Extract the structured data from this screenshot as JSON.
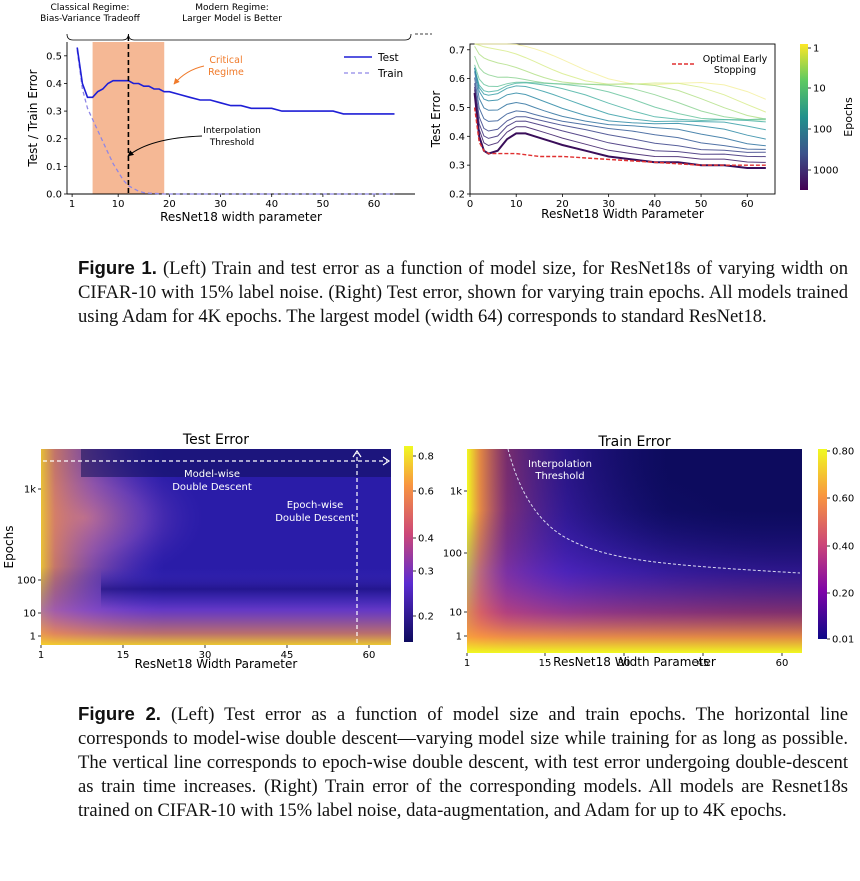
{
  "chart_data": [
    {
      "type": "line",
      "xlabel": "ResNet18 width parameter",
      "ylabel": "Test / Train Error",
      "xlim": [
        0,
        68
      ],
      "ylim": [
        0,
        0.55
      ],
      "xticks": [
        "1",
        "10",
        "20",
        "30",
        "40",
        "50",
        "60"
      ],
      "yticks": [
        "0.0",
        "0.1",
        "0.2",
        "0.3",
        "0.4",
        "0.5"
      ],
      "legend": "top-right",
      "regime_left": "Classical Regime:\nBias-Variance Tradeoff",
      "regime_right": "Modern Regime:\nLarger Model is Better",
      "critical_label": "Critical\nRegime",
      "threshold_label": "Interpolation\nThreshold",
      "critical_range": [
        5,
        19
      ],
      "threshold_x": 12,
      "critical_color": "#f5b895",
      "series": [
        {
          "name": "Test",
          "color": "#1f1fd6",
          "x": [
            2,
            3,
            4,
            5,
            6,
            7,
            8,
            9,
            10,
            11,
            12,
            13,
            14,
            15,
            16,
            17,
            18,
            19,
            20,
            22,
            24,
            26,
            28,
            30,
            32,
            34,
            36,
            38,
            40,
            42,
            44,
            46,
            48,
            50,
            52,
            54,
            56,
            58,
            60,
            62,
            64
          ],
          "y": [
            0.53,
            0.4,
            0.35,
            0.35,
            0.37,
            0.38,
            0.4,
            0.41,
            0.41,
            0.41,
            0.41,
            0.4,
            0.4,
            0.39,
            0.39,
            0.38,
            0.38,
            0.37,
            0.37,
            0.36,
            0.35,
            0.34,
            0.34,
            0.33,
            0.32,
            0.32,
            0.31,
            0.31,
            0.31,
            0.3,
            0.3,
            0.3,
            0.3,
            0.3,
            0.3,
            0.29,
            0.29,
            0.29,
            0.29,
            0.29,
            0.29
          ]
        },
        {
          "name": "Train",
          "color": "#8f86e6",
          "x": [
            2,
            3,
            4,
            5,
            6,
            7,
            8,
            9,
            10,
            11,
            12,
            13,
            14,
            15,
            16,
            17,
            18,
            19,
            20,
            25,
            30,
            40,
            50,
            60,
            64
          ],
          "y": [
            0.52,
            0.38,
            0.31,
            0.27,
            0.23,
            0.19,
            0.15,
            0.11,
            0.08,
            0.05,
            0.03,
            0.02,
            0.01,
            0.005,
            0.003,
            0.002,
            0.001,
            0.0,
            0.0,
            0.0,
            0.0,
            0.0,
            0.0,
            0.0,
            0.0
          ]
        }
      ]
    },
    {
      "type": "line",
      "xlabel": "ResNet18 Width Parameter",
      "ylabel": "Test Error",
      "xlim": [
        0,
        66
      ],
      "ylim": [
        0.2,
        0.72
      ],
      "xticks": [
        "0",
        "10",
        "20",
        "30",
        "40",
        "50",
        "60"
      ],
      "yticks": [
        "0.2",
        "0.3",
        "0.4",
        "0.5",
        "0.6",
        "0.7"
      ],
      "legend": "top-right",
      "legend_label": "Optimal Early\nStopping",
      "colorbar_label": "Epochs",
      "colorbar_ticks": [
        "1",
        "10",
        "100",
        "1000"
      ],
      "optimal_color": "#e03030",
      "final_curve": {
        "x": [
          1,
          2,
          3,
          4,
          6,
          8,
          10,
          12,
          14,
          16,
          18,
          20,
          25,
          30,
          35,
          40,
          45,
          50,
          55,
          60,
          64
        ],
        "y": [
          0.55,
          0.4,
          0.35,
          0.34,
          0.35,
          0.39,
          0.41,
          0.41,
          0.4,
          0.39,
          0.38,
          0.37,
          0.35,
          0.33,
          0.32,
          0.31,
          0.31,
          0.3,
          0.3,
          0.29,
          0.29
        ]
      },
      "optimal_curve": {
        "x": [
          1,
          2,
          3,
          4,
          6,
          8,
          10,
          15,
          20,
          30,
          40,
          50,
          60,
          64
        ],
        "y": [
          0.5,
          0.38,
          0.35,
          0.34,
          0.34,
          0.34,
          0.34,
          0.33,
          0.33,
          0.32,
          0.31,
          0.3,
          0.3,
          0.3
        ]
      }
    },
    {
      "type": "heatmap",
      "title": "Test Error",
      "xlabel": "ResNet18 Width Parameter",
      "ylabel": "Epochs",
      "xticks": [
        "1",
        "15",
        "30",
        "45",
        "60"
      ],
      "yticks": [
        "1",
        "10",
        "100",
        "1k"
      ],
      "colorbar_ticks": [
        "0.8",
        "0.6",
        "0.4",
        "0.3",
        "0.2"
      ],
      "annotation_model": "Model-wise\nDouble Descent",
      "annotation_epoch": "Epoch-wise\nDouble Descent"
    },
    {
      "type": "heatmap",
      "title": "Train Error",
      "xlabel": "ResNet18 Width Parameter",
      "xticks": [
        "1",
        "15",
        "30",
        "45",
        "60"
      ],
      "yticks": [
        "1",
        "10",
        "100",
        "1k"
      ],
      "colorbar_ticks": [
        "0.80",
        "0.60",
        "0.40",
        "0.20",
        "0.01"
      ],
      "annotation": "Interpolation\nThreshold"
    }
  ],
  "captions": {
    "fig1_label": "Figure 1.",
    "fig1_text": " (Left) Train and test error as a function of model size, for ResNet18s of varying width on CIFAR-10 with 15% label noise. (Right) Test error, shown for varying train epochs. All models trained using Adam for 4K epochs. The largest model (width 64) corresponds to standard ResNet18.",
    "fig2_label": "Figure 2.",
    "fig2_text": " (Left) Test error as a function of model size and train epochs. The horizontal line corresponds to model-wise double descent—varying model size while training for as long as possible. The vertical line corresponds to epoch-wise double descent, with test error undergoing double-descent as train time increases. (Right) Train error of the corresponding models. All models are Resnet18s trained on CIFAR-10 with 15% label noise, data-augmentation, and Adam for up to 4K epochs."
  }
}
